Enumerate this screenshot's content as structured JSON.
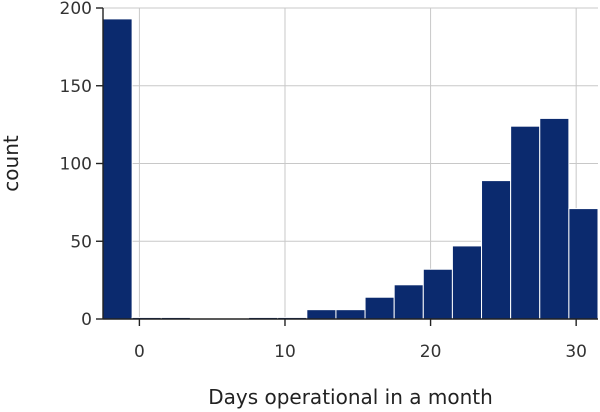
{
  "chart_data": {
    "type": "bar",
    "xlabel": "Days operational in a month",
    "ylabel": "count",
    "xlim": [
      -2.5,
      31.5
    ],
    "ylim": [
      0,
      200
    ],
    "xticks": [
      0,
      10,
      20,
      30
    ],
    "yticks": [
      0,
      50,
      100,
      150,
      200
    ],
    "grid": true,
    "bar_color": "#0b2a6e",
    "bins": [
      {
        "x0": -2.5,
        "x1": -0.5,
        "count": 193
      },
      {
        "x0": -0.5,
        "x1": 1.5,
        "count": 1
      },
      {
        "x0": 1.5,
        "x1": 3.5,
        "count": 1
      },
      {
        "x0": 3.5,
        "x1": 5.5,
        "count": 0
      },
      {
        "x0": 5.5,
        "x1": 7.5,
        "count": 0
      },
      {
        "x0": 7.5,
        "x1": 9.5,
        "count": 1
      },
      {
        "x0": 9.5,
        "x1": 11.5,
        "count": 1
      },
      {
        "x0": 11.5,
        "x1": 13.5,
        "count": 6
      },
      {
        "x0": 13.5,
        "x1": 15.5,
        "count": 6
      },
      {
        "x0": 15.5,
        "x1": 17.5,
        "count": 14
      },
      {
        "x0": 17.5,
        "x1": 19.5,
        "count": 22
      },
      {
        "x0": 19.5,
        "x1": 21.5,
        "count": 32
      },
      {
        "x0": 21.5,
        "x1": 23.5,
        "count": 47
      },
      {
        "x0": 23.5,
        "x1": 25.5,
        "count": 89
      },
      {
        "x0": 25.5,
        "x1": 27.5,
        "count": 124
      },
      {
        "x0": 27.5,
        "x1": 29.5,
        "count": 129
      },
      {
        "x0": 29.5,
        "x1": 31.5,
        "count": 71
      }
    ]
  }
}
